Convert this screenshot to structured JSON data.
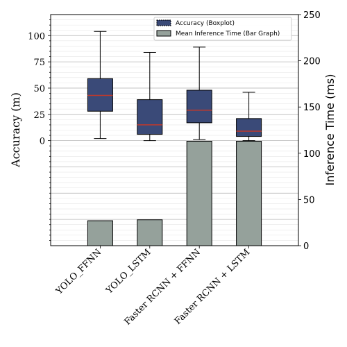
{
  "chart_data": {
    "type": "bar",
    "categories": [
      "YOLO_FFNN",
      "YOLO_LSTM",
      "Faster RCNN + FFNN",
      "Faster RCNN + LSTM"
    ],
    "left_axis": {
      "label": "Accuracy (m)",
      "ticks": [
        0,
        25,
        50,
        75,
        100
      ],
      "range": [
        -100,
        120
      ]
    },
    "right_axis": {
      "label": "Inference Time (ms)",
      "ticks": [
        0,
        50,
        100,
        150,
        200,
        250
      ],
      "range": [
        0,
        250
      ]
    },
    "legend": {
      "position": "top-right",
      "entries": [
        "Accuracy (Boxplot)",
        "Mean Inference Time (Bar Graph)"
      ]
    },
    "grid": true,
    "series": [
      {
        "name": "Accuracy (Boxplot)",
        "type": "boxplot",
        "axis": "left",
        "values": [
          {
            "whisker_low": 2,
            "q1": 28,
            "median": 43,
            "q3": 59,
            "whisker_high": 104
          },
          {
            "whisker_low": 0,
            "q1": 6,
            "median": 15,
            "q3": 39,
            "whisker_high": 84
          },
          {
            "whisker_low": 1,
            "q1": 17,
            "median": 29,
            "q3": 48,
            "whisker_high": 89
          },
          {
            "whisker_low": 0,
            "q1": 4,
            "median": 9,
            "q3": 21,
            "whisker_high": 46
          }
        ]
      },
      {
        "name": "Mean Inference Time (Bar Graph)",
        "type": "bar",
        "axis": "right",
        "values": [
          27,
          28,
          113,
          113
        ]
      }
    ],
    "colors": {
      "box_fill": "#3a4a78",
      "median": "#c0392b",
      "bar_fill": "#95a19b",
      "outline": "#000000",
      "grid": "#cccccc"
    }
  }
}
